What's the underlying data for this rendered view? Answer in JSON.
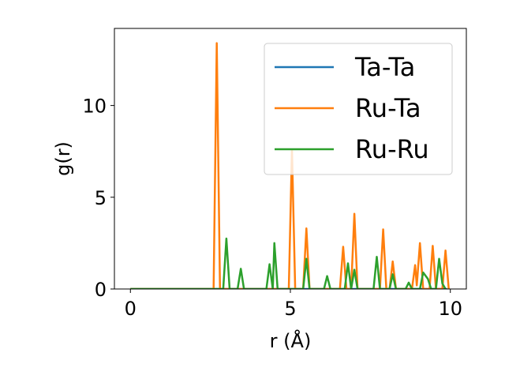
{
  "chart_data": {
    "type": "line",
    "xlabel": "r (Å)",
    "ylabel": "g(r)",
    "xlim": [
      -0.5,
      10.5
    ],
    "ylim": [
      0,
      14.2
    ],
    "x_ticks": [
      0,
      5,
      10
    ],
    "y_ticks": [
      0,
      5,
      10
    ],
    "grid": false,
    "legend_position": "top-right",
    "series": [
      {
        "name": "Ta-Ta",
        "color": "#1f77b4",
        "points": [
          [
            0,
            0
          ],
          [
            9.9,
            0
          ]
        ]
      },
      {
        "name": "Ru-Ta",
        "color": "#ff7f0e",
        "points": [
          [
            0,
            0
          ],
          [
            2.6,
            0
          ],
          [
            2.7,
            13.4
          ],
          [
            2.8,
            0
          ],
          [
            4.95,
            0
          ],
          [
            5.05,
            7.6
          ],
          [
            5.15,
            0
          ],
          [
            5.4,
            0
          ],
          [
            5.5,
            3.3
          ],
          [
            5.6,
            0
          ],
          [
            6.55,
            0
          ],
          [
            6.65,
            2.3
          ],
          [
            6.75,
            0
          ],
          [
            6.9,
            0
          ],
          [
            7.0,
            4.1
          ],
          [
            7.1,
            0
          ],
          [
            7.8,
            0
          ],
          [
            7.9,
            3.25
          ],
          [
            8.0,
            0
          ],
          [
            8.1,
            0
          ],
          [
            8.2,
            1.5
          ],
          [
            8.3,
            0
          ],
          [
            8.8,
            0
          ],
          [
            8.9,
            1.3
          ],
          [
            8.95,
            0.2
          ],
          [
            9.05,
            2.5
          ],
          [
            9.15,
            0
          ],
          [
            9.35,
            0
          ],
          [
            9.45,
            2.35
          ],
          [
            9.55,
            0
          ],
          [
            9.75,
            0
          ],
          [
            9.85,
            2.1
          ],
          [
            9.95,
            0
          ]
        ]
      },
      {
        "name": "Ru-Ru",
        "color": "#2ca02c",
        "points": [
          [
            0,
            0
          ],
          [
            2.9,
            0
          ],
          [
            3.0,
            2.75
          ],
          [
            3.1,
            0
          ],
          [
            3.35,
            0
          ],
          [
            3.45,
            1.1
          ],
          [
            3.55,
            0
          ],
          [
            4.25,
            0
          ],
          [
            4.35,
            1.35
          ],
          [
            4.45,
            0
          ],
          [
            4.5,
            2.5
          ],
          [
            4.6,
            0
          ],
          [
            5.4,
            0
          ],
          [
            5.5,
            1.65
          ],
          [
            5.6,
            0
          ],
          [
            6.05,
            0
          ],
          [
            6.15,
            0.7
          ],
          [
            6.25,
            0
          ],
          [
            6.7,
            0
          ],
          [
            6.8,
            1.4
          ],
          [
            6.9,
            0
          ],
          [
            7.0,
            1.05
          ],
          [
            7.1,
            0
          ],
          [
            7.6,
            0
          ],
          [
            7.7,
            1.75
          ],
          [
            7.8,
            0
          ],
          [
            8.1,
            0
          ],
          [
            8.2,
            0.8
          ],
          [
            8.3,
            0
          ],
          [
            8.6,
            0
          ],
          [
            8.7,
            0.35
          ],
          [
            8.8,
            0
          ],
          [
            9.05,
            0
          ],
          [
            9.15,
            0.9
          ],
          [
            9.3,
            0.55
          ],
          [
            9.4,
            0
          ],
          [
            9.55,
            0
          ],
          [
            9.65,
            1.65
          ],
          [
            9.75,
            0.3
          ],
          [
            9.85,
            0
          ]
        ]
      }
    ]
  }
}
